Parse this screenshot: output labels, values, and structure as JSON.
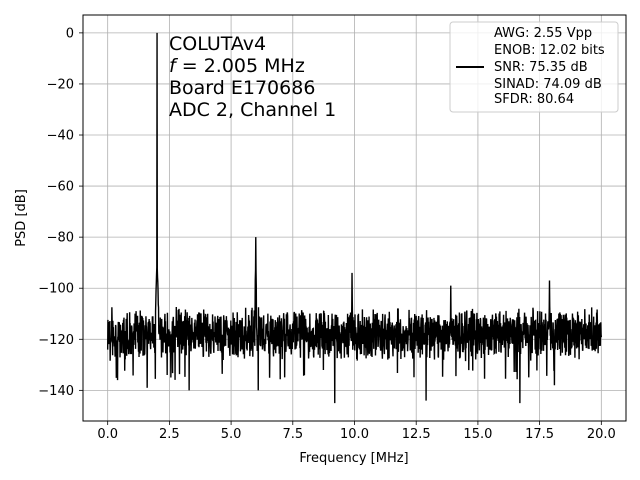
{
  "chart_data": {
    "type": "line",
    "xlabel": "Frequency [MHz]",
    "ylabel": "PSD [dB]",
    "xlim": [
      -1,
      21
    ],
    "ylim": [
      -152,
      7
    ],
    "x_ticks": [
      {
        "value": 0.0,
        "label": "0.0"
      },
      {
        "value": 2.5,
        "label": "2.5"
      },
      {
        "value": 5.0,
        "label": "5.0"
      },
      {
        "value": 7.5,
        "label": "7.5"
      },
      {
        "value": 10.0,
        "label": "10.0"
      },
      {
        "value": 12.5,
        "label": "12.5"
      },
      {
        "value": 15.0,
        "label": "15.0"
      },
      {
        "value": 17.5,
        "label": "17.5"
      },
      {
        "value": 20.0,
        "label": "20.0"
      }
    ],
    "y_ticks": [
      {
        "value": 0,
        "label": "0"
      },
      {
        "value": -20,
        "label": "−20"
      },
      {
        "value": -40,
        "label": "−40"
      },
      {
        "value": -60,
        "label": "−60"
      },
      {
        "value": -80,
        "label": "−80"
      },
      {
        "value": -100,
        "label": "−100"
      },
      {
        "value": -120,
        "label": "−120"
      },
      {
        "value": -140,
        "label": "−140"
      }
    ],
    "grid": true,
    "annotation": {
      "line1": "COLUTAv4",
      "line2_italic": "f",
      "line2_rest": " = 2.005 MHz",
      "line3": "Board E170686",
      "line4": "ADC 2, Channel 1"
    },
    "legend": {
      "location": "top-right",
      "lines": [
        "AWG: 2.55 Vpp",
        "ENOB: 12.02 bits",
        "SNR: 75.35 dB",
        "SINAD: 74.09 dB",
        "SFDR: 80.64"
      ]
    },
    "series": [
      {
        "color": "#000000",
        "noise_floor": {
          "x_range": [
            0.0,
            20.0
          ],
          "y_range": [
            -132,
            -104
          ],
          "typical": -117
        },
        "peaks": [
          {
            "x": 2.005,
            "y": 0
          },
          {
            "x": 6.0,
            "y": -80
          },
          {
            "x": 9.9,
            "y": -94
          },
          {
            "x": 13.9,
            "y": -99
          },
          {
            "x": 17.9,
            "y": -97
          }
        ],
        "spurs": [
          {
            "x": 0.4,
            "y": -136
          },
          {
            "x": 1.6,
            "y": -139
          },
          {
            "x": 3.3,
            "y": -140
          },
          {
            "x": 6.1,
            "y": -140
          },
          {
            "x": 9.2,
            "y": -145
          },
          {
            "x": 12.9,
            "y": -144
          },
          {
            "x": 16.7,
            "y": -145
          },
          {
            "x": 18.1,
            "y": -138
          }
        ]
      }
    ]
  }
}
